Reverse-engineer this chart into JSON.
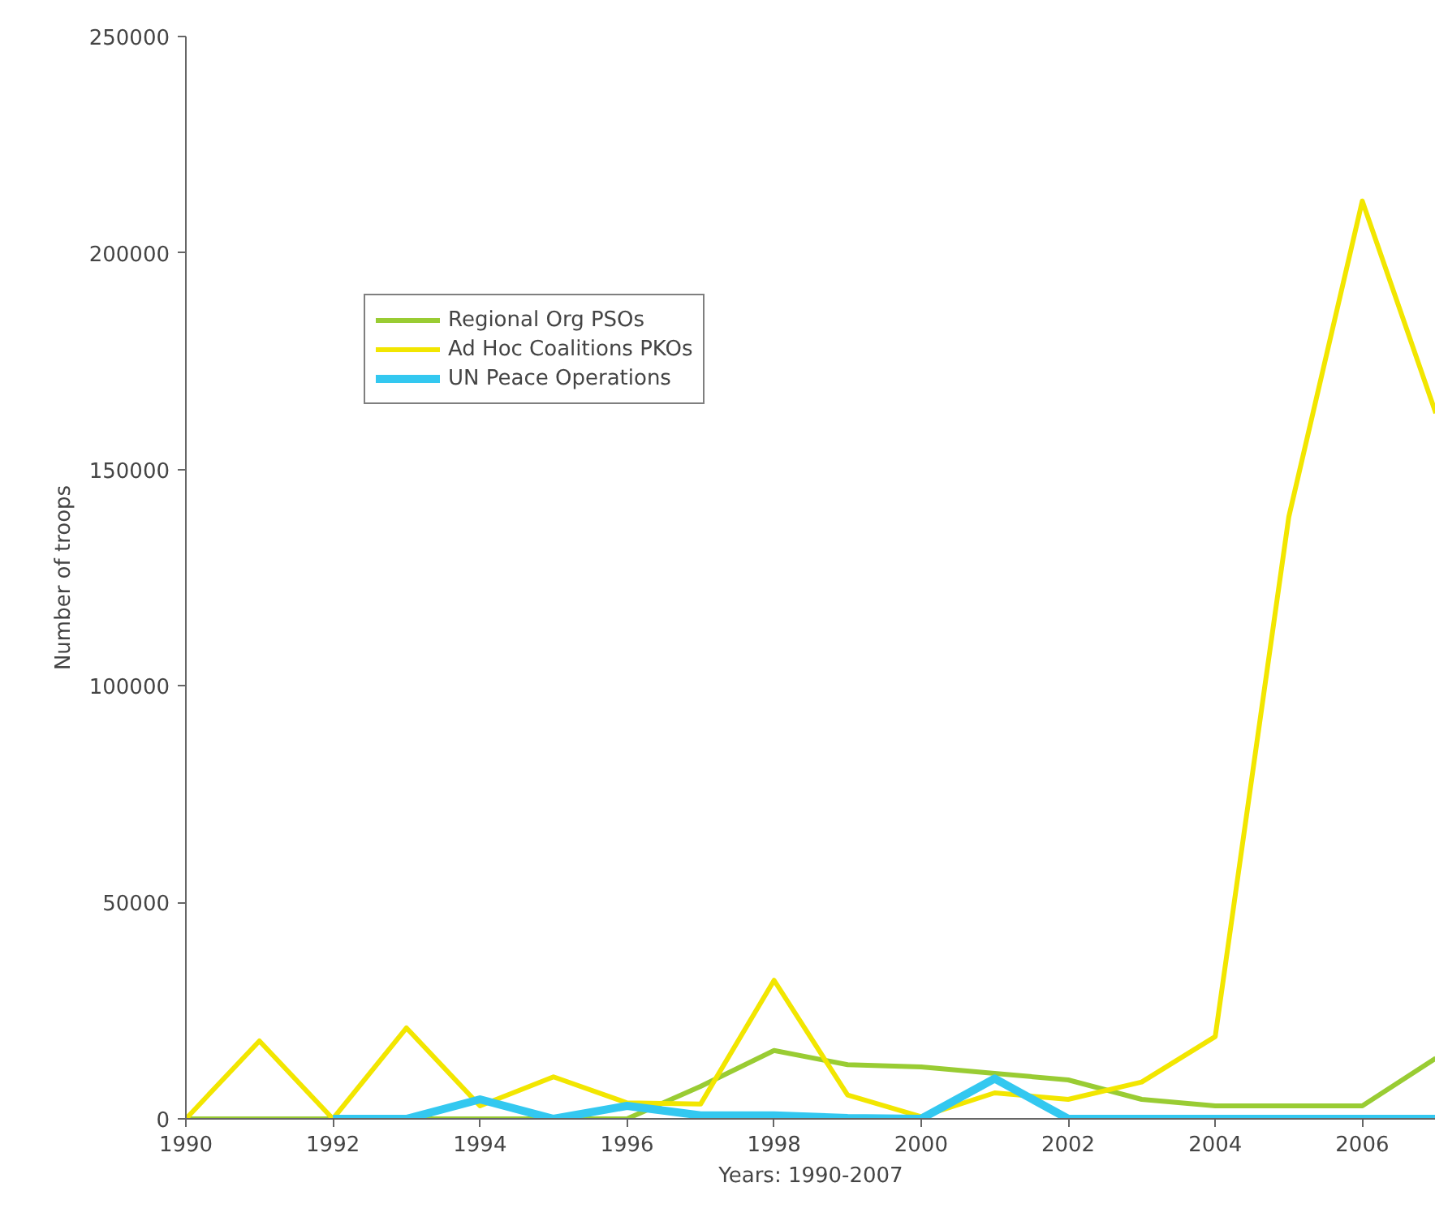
{
  "chart_data": {
    "type": "line",
    "xlabel": "Years: 1990-2007",
    "ylabel": "Number of troops",
    "x": [
      1990,
      1991,
      1992,
      1993,
      1994,
      1995,
      1996,
      1997,
      1998,
      1999,
      2000,
      2001,
      2002,
      2003,
      2004,
      2005,
      2006,
      2007
    ],
    "series": [
      {
        "name": "Regional Org PSOs",
        "color": "#99cc33",
        "values": [
          0,
          0,
          0,
          0,
          0,
          0,
          0,
          7500,
          15800,
          12500,
          12000,
          10500,
          9000,
          4500,
          3000,
          3000,
          3000,
          14000
        ]
      },
      {
        "name": "Ad Hoc Coalitions PKOs",
        "color": "#f2e600",
        "values": [
          0,
          18000,
          0,
          21000,
          3000,
          9700,
          3700,
          3400,
          32000,
          5500,
          500,
          6000,
          4500,
          8500,
          19000,
          139000,
          212000,
          163000
        ]
      },
      {
        "name": "UN Peace Operations",
        "color": "#33c8f0",
        "values": [
          null,
          null,
          0,
          0,
          4500,
          0,
          3000,
          800,
          800,
          200,
          0,
          9300,
          0,
          0,
          0,
          0,
          0,
          0
        ]
      }
    ],
    "xlim": [
      1990,
      2007
    ],
    "xticks": [
      1990,
      1992,
      1994,
      1996,
      1998,
      2000,
      2002,
      2004,
      2006
    ],
    "ylim": [
      0,
      250000
    ],
    "yticks": [
      0,
      50000,
      100000,
      150000,
      200000,
      250000
    ],
    "legend": "top left",
    "grid": false,
    "marker": "none",
    "line_style": "solid"
  }
}
